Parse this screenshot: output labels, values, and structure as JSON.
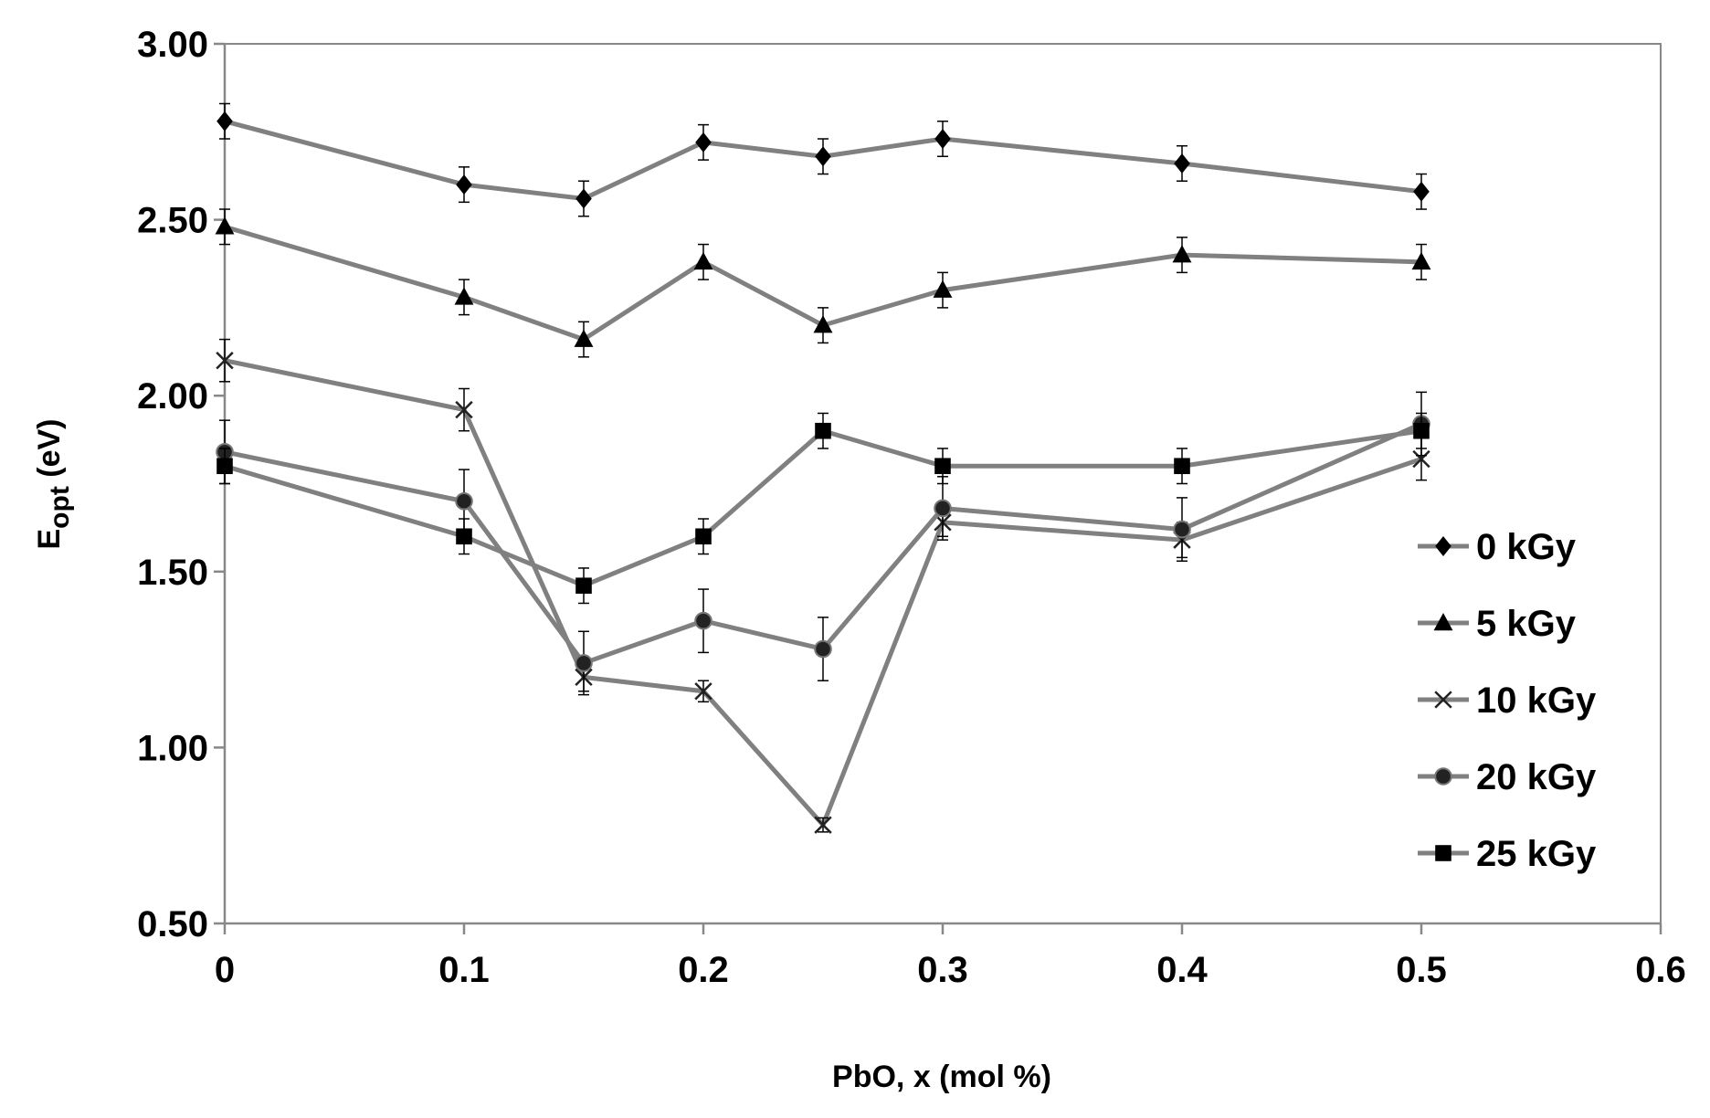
{
  "chart_data": {
    "type": "line",
    "title": "",
    "xlabel": "PbO, x (mol %)",
    "ylabel_main": "E",
    "ylabel_sub": "opt",
    "ylabel_suffix": " (eV)",
    "xlim": [
      0,
      0.6
    ],
    "ylim": [
      0.5,
      3.0
    ],
    "xticks": [
      0,
      0.1,
      0.2,
      0.3,
      0.4,
      0.5,
      0.6
    ],
    "xtick_labels": [
      "0",
      "0.1",
      "0.2",
      "0.3",
      "0.4",
      "0.5",
      "0.6"
    ],
    "yticks": [
      0.5,
      1.0,
      1.5,
      2.0,
      2.5,
      3.0
    ],
    "ytick_labels": [
      "0.50",
      "1.00",
      "1.50",
      "2.00",
      "2.50",
      "3.00"
    ],
    "grid": false,
    "legend_position": "right",
    "line_color": "#808080",
    "marker_color": "#000000",
    "x": [
      0,
      0.1,
      0.15,
      0.2,
      0.25,
      0.3,
      0.4,
      0.5
    ],
    "series": [
      {
        "name": "0 kGy",
        "marker": "diamond",
        "values": [
          2.78,
          2.6,
          2.56,
          2.72,
          2.68,
          2.73,
          2.66,
          2.58
        ],
        "errors": [
          0.05,
          0.05,
          0.05,
          0.05,
          0.05,
          0.05,
          0.05,
          0.05
        ]
      },
      {
        "name": "5 kGy",
        "marker": "triangle",
        "values": [
          2.48,
          2.28,
          2.16,
          2.38,
          2.2,
          2.3,
          2.4,
          2.38
        ],
        "errors": [
          0.05,
          0.05,
          0.05,
          0.05,
          0.05,
          0.05,
          0.05,
          0.05
        ]
      },
      {
        "name": "10 kGy",
        "marker": "x",
        "values": [
          2.1,
          1.96,
          1.2,
          1.16,
          0.78,
          1.64,
          1.59,
          1.82
        ],
        "errors": [
          0.06,
          0.06,
          0.04,
          0.03,
          0.02,
          0.04,
          0.05,
          0.06
        ]
      },
      {
        "name": "20 kGy",
        "marker": "circle",
        "values": [
          1.84,
          1.7,
          1.24,
          1.36,
          1.28,
          1.68,
          1.62,
          1.92
        ],
        "errors": [
          0.09,
          0.09,
          0.09,
          0.09,
          0.09,
          0.09,
          0.09,
          0.09
        ]
      },
      {
        "name": "25 kGy",
        "marker": "square",
        "values": [
          1.8,
          1.6,
          1.46,
          1.6,
          1.9,
          1.8,
          1.8,
          1.9
        ],
        "errors": [
          0.05,
          0.05,
          0.05,
          0.05,
          0.05,
          0.05,
          0.05,
          0.05
        ]
      }
    ]
  }
}
